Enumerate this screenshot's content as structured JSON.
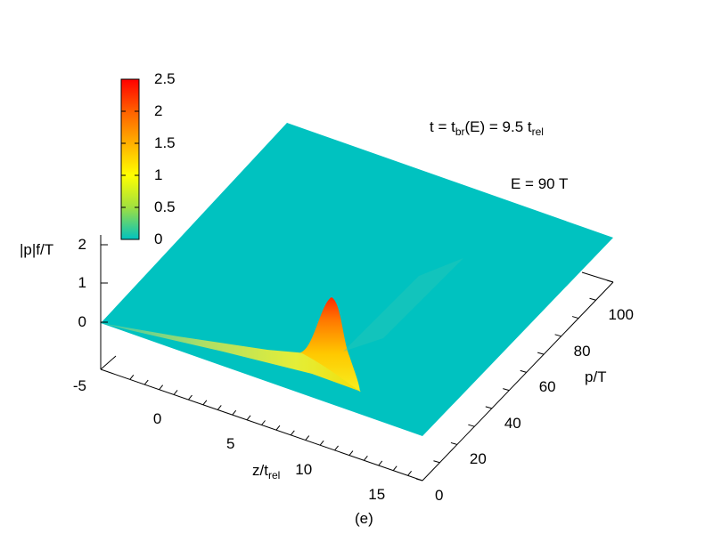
{
  "chart_data": {
    "type": "surface",
    "title": "",
    "annotations": {
      "time_prefix": "t = t",
      "time_sub1": "br",
      "time_mid": "(E) = 9.5 t",
      "time_sub2": "rel",
      "energy": "E = 90 T",
      "panel": "(e)"
    },
    "zlabel": "|p|f/T",
    "xlabel_main": "z/t",
    "xlabel_sub": "rel",
    "ylabel": "p/T",
    "x_ticks": [
      "0",
      "5",
      "10",
      "15"
    ],
    "y_ticks": [
      "0",
      "20",
      "40",
      "60",
      "80",
      "100"
    ],
    "z_ticks": [
      "-5",
      "0",
      "1",
      "2"
    ],
    "colorbar_ticks": [
      "0",
      "0.5",
      "1",
      "1.5",
      "2",
      "2.5"
    ],
    "colorbar_range": [
      0,
      2.5
    ],
    "xlim": [
      -4,
      18
    ],
    "ylim": [
      0,
      110
    ],
    "peak": {
      "z": 10.2,
      "p": 7,
      "value": 2.3
    },
    "base_colors": {
      "surface": "#00c2c0",
      "colormap": [
        "#00c2c0",
        "#ffff00",
        "#ff9900",
        "#ff0000"
      ]
    }
  }
}
